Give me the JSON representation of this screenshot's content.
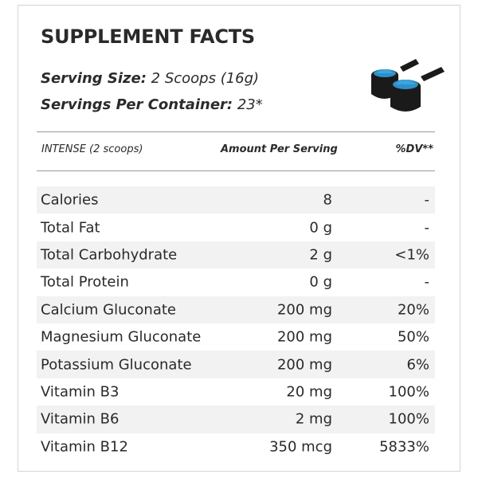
{
  "title": "SUPPLEMENT FACTS",
  "serving_size": {
    "label": "Serving Size:",
    "value": " 2 Scoops (16g)"
  },
  "servings_per_container": {
    "label": "Servings Per Container:",
    "value": " 23*"
  },
  "icon": "scoop-icon",
  "colors": {
    "scoop_powder": "#2e8fc9",
    "scoop_body": "#1a1a1a",
    "row_shade": "#f2f2f2",
    "rule": "#9a9a9a"
  },
  "table": {
    "header": {
      "item": "INTENSE (2 scoops)",
      "amount": "Amount Per Serving",
      "dv": "%DV**"
    },
    "rows": [
      {
        "name": "Calories",
        "amount": "8",
        "dv": "-"
      },
      {
        "name": "Total Fat",
        "amount": "0 g",
        "dv": "-"
      },
      {
        "name": "Total Carbohydrate",
        "amount": "2 g",
        "dv": "<1%"
      },
      {
        "name": "Total Protein",
        "amount": "0 g",
        "dv": "-"
      },
      {
        "name": "Calcium Gluconate",
        "amount": "200 mg",
        "dv": "20%"
      },
      {
        "name": "Magnesium Gluconate",
        "amount": "200 mg",
        "dv": "50%"
      },
      {
        "name": "Potassium Gluconate",
        "amount": "200 mg",
        "dv": "6%"
      },
      {
        "name": "Vitamin B3",
        "amount": "20 mg",
        "dv": "100%"
      },
      {
        "name": "Vitamin B6",
        "amount": "2 mg",
        "dv": "100%"
      },
      {
        "name": "Vitamin B12",
        "amount": "350 mcg",
        "dv": "5833%"
      }
    ]
  }
}
